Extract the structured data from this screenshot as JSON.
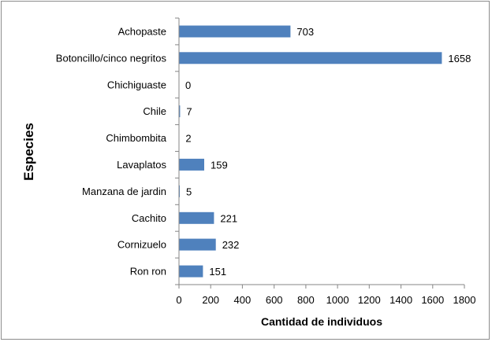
{
  "chart_data": {
    "type": "bar",
    "orientation": "horizontal",
    "categories": [
      "Achopaste",
      "Botoncillo/cinco negritos",
      "Chichiguaste",
      "Chile",
      "Chimbombita",
      "Lavaplatos",
      "Manzana de jardin",
      "Cachito",
      "Cornizuelo",
      "Ron ron"
    ],
    "values": [
      703,
      1658,
      0,
      7,
      2,
      159,
      5,
      221,
      232,
      151
    ],
    "xlabel": "Cantidad de individuos",
    "ylabel": "Especies",
    "xlim": [
      0,
      1800
    ],
    "xticks": [
      0,
      200,
      400,
      600,
      800,
      1000,
      1200,
      1400,
      1600,
      1800
    ],
    "grid": false,
    "data_labels": true,
    "bar_color": "#4f81bd"
  }
}
